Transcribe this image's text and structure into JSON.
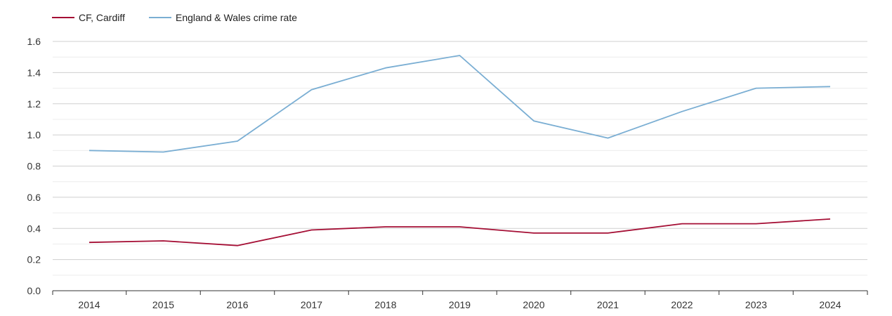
{
  "chart_data": {
    "type": "line",
    "title": "",
    "xlabel": "",
    "ylabel": "",
    "categories": [
      "2014",
      "2015",
      "2016",
      "2017",
      "2018",
      "2019",
      "2020",
      "2021",
      "2022",
      "2023",
      "2024"
    ],
    "ylim": [
      0,
      1.6
    ],
    "yticks": [
      "0.0",
      "0.2",
      "0.4",
      "0.6",
      "0.8",
      "1.0",
      "1.2",
      "1.4",
      "1.6"
    ],
    "grid": true,
    "legend_position": "top-left",
    "series": [
      {
        "name": "CF, Cardiff",
        "color": "#a50f35",
        "values": [
          0.31,
          0.32,
          0.29,
          0.39,
          0.41,
          0.41,
          0.37,
          0.37,
          0.43,
          0.43,
          0.46
        ]
      },
      {
        "name": "England & Wales crime rate",
        "color": "#7aaed3",
        "values": [
          0.9,
          0.89,
          0.96,
          1.29,
          1.43,
          1.51,
          1.09,
          0.98,
          1.15,
          1.3,
          1.31
        ]
      }
    ]
  }
}
